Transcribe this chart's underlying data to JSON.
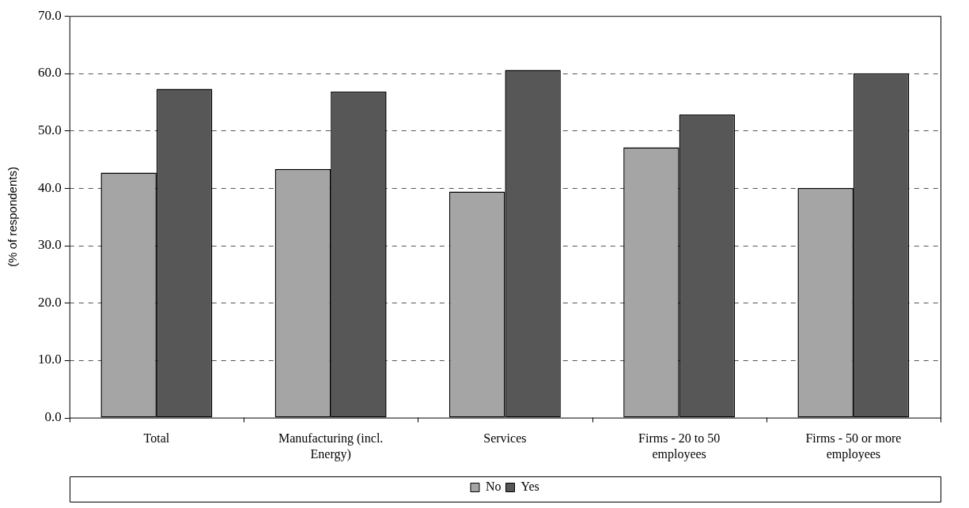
{
  "chart_data": {
    "type": "bar",
    "ylabel": "(% of respondents)",
    "categories": [
      "Total",
      "Manufacturing (incl. Energy)",
      "Services",
      "Firms - 20 to 50 employees",
      "Firms - 50 or more employees"
    ],
    "series": [
      {
        "name": "No",
        "color": "#a5a5a5",
        "values": [
          42.7,
          43.3,
          39.4,
          47.1,
          40.0
        ]
      },
      {
        "name": "Yes",
        "color": "#575757",
        "values": [
          57.3,
          56.8,
          60.6,
          52.8,
          60.0
        ]
      }
    ],
    "ylim": [
      0,
      70
    ],
    "yticks": [
      {
        "value": 0,
        "label": "0.0"
      },
      {
        "value": 10,
        "label": "10.0"
      },
      {
        "value": 20,
        "label": "20.0"
      },
      {
        "value": 30,
        "label": "30.0"
      },
      {
        "value": 40,
        "label": "40.0"
      },
      {
        "value": 50,
        "label": "50.0"
      },
      {
        "value": 60,
        "label": "60.0"
      },
      {
        "value": 70,
        "label": "70.0"
      }
    ],
    "grid": "y",
    "legend": "bottom"
  }
}
